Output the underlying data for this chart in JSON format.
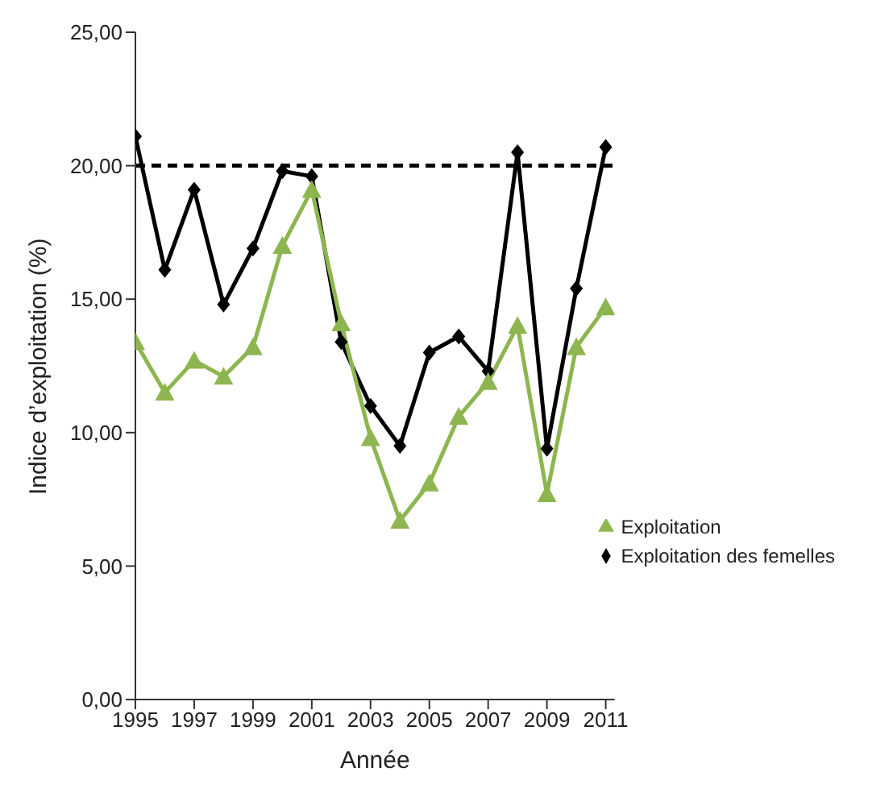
{
  "chart_data": {
    "type": "line",
    "xlabel": "Année",
    "ylabel": "Indice d’exploitation (%)",
    "x": [
      1995,
      1996,
      1997,
      1998,
      1999,
      2000,
      2001,
      2002,
      2003,
      2004,
      2005,
      2006,
      2007,
      2008,
      2009,
      2010,
      2011
    ],
    "series": [
      {
        "name": "Exploitation des femelles",
        "color": "#000000",
        "marker": "diamond",
        "values": [
          21.1,
          16.1,
          19.1,
          14.8,
          16.9,
          19.8,
          19.6,
          13.4,
          11.0,
          9.5,
          13.0,
          13.6,
          12.3,
          20.5,
          9.4,
          15.4,
          20.7
        ]
      },
      {
        "name": "Exploitation",
        "color": "#8db650",
        "marker": "triangle",
        "values": [
          13.4,
          11.5,
          12.7,
          12.1,
          13.2,
          17.0,
          19.1,
          14.1,
          9.8,
          6.7,
          8.1,
          10.6,
          11.9,
          14.0,
          7.7,
          13.2,
          14.7
        ]
      }
    ],
    "xlim": [
      1995,
      2011.3
    ],
    "xticks": [
      1995,
      1997,
      1999,
      2001,
      2003,
      2005,
      2007,
      2009,
      2011
    ],
    "ylim": [
      0,
      25
    ],
    "yticks": [
      {
        "value": 0,
        "label": "0,00"
      },
      {
        "value": 5,
        "label": "5,00"
      },
      {
        "value": 10,
        "label": "10,00"
      },
      {
        "value": 15,
        "label": "15,00"
      },
      {
        "value": 20,
        "label": "20,00"
      },
      {
        "value": 25,
        "label": "25,00"
      }
    ],
    "ref_lines": [
      {
        "axis": "y",
        "value": 20,
        "color": "#000000",
        "line_style": "dashed"
      }
    ],
    "grid": false,
    "legend": "bottom right",
    "line_style": "solid"
  }
}
